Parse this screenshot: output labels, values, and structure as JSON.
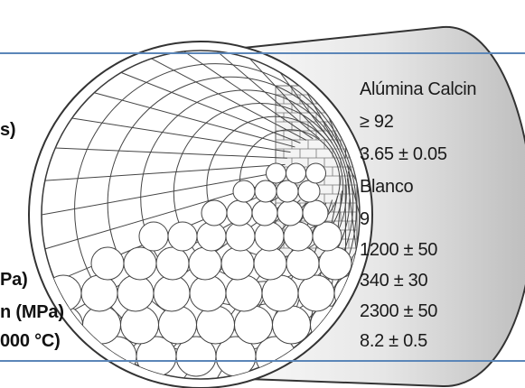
{
  "left_labels": {
    "l1": "s)",
    "l2": "Pa)",
    "l3": "n (MPa)",
    "l4": "000 °C)"
  },
  "values": [
    "Alúmina Calcin",
    "≥ 92",
    "3.65 ± 0.05",
    "Blanco",
    "9",
    "1200 ± 50",
    "340 ± 30",
    "2300 ± 50",
    "8.2 ± 0.5"
  ],
  "colors": {
    "rule": "#5b86b8",
    "ink": "#333333",
    "shade": "#d9d9d9"
  }
}
